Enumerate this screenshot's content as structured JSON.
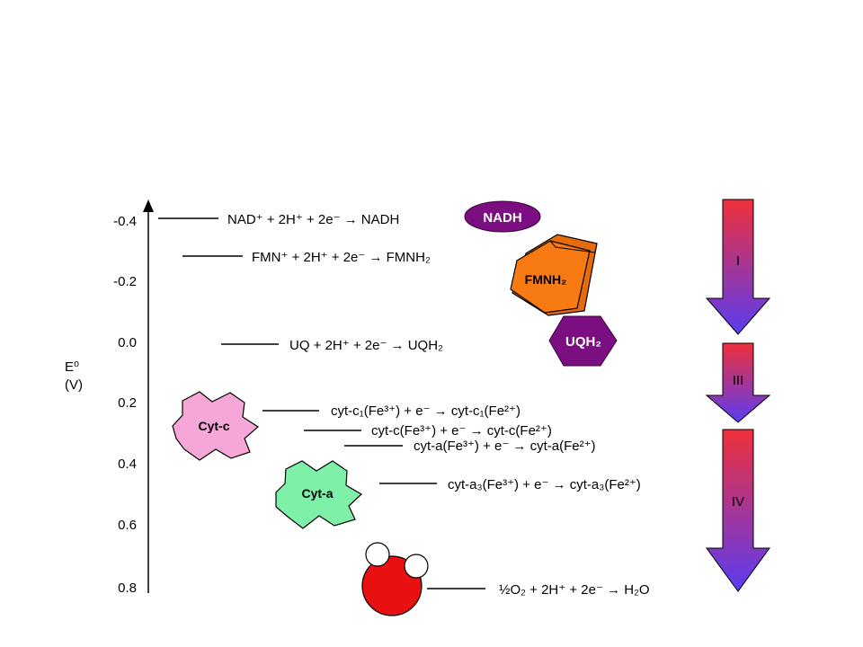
{
  "axis": {
    "label_top": "E⁰",
    "label_bottom": "(V)",
    "ticks": [
      "-0.4",
      "-0.2",
      "0.0",
      "0.2",
      "0.4",
      "0.6",
      "0.8"
    ]
  },
  "reactions": {
    "nad": "NAD⁺ + 2H⁺ + 2e⁻ → NADH",
    "fmn": "FMN⁺ + 2H⁺ + 2e⁻ → FMNH₂",
    "uq": "UQ + 2H⁺ + 2e⁻ → UQH₂",
    "cytc1": "cyt-c₁(Fe³⁺) + e⁻ → cyt-c₁(Fe²⁺)",
    "cytc": "cyt-c(Fe³⁺) + e⁻ → cyt-c(Fe²⁺)",
    "cyta": "cyt-a(Fe³⁺) + e⁻ → cyt-a(Fe²⁺)",
    "cyta3": "cyt-a₃(Fe³⁺) + e⁻ → cyt-a₃(Fe²⁺)",
    "water": "½O₂ + 2H⁺ + 2e⁻ → H₂O"
  },
  "molecules": {
    "nadh": "NADH",
    "fmnh2": "FMNH₂",
    "uqh2": "UQH₂",
    "cytc": "Cyt-c",
    "cyta": "Cyt-a"
  },
  "complexes": [
    "I",
    "III",
    "IV"
  ],
  "colors": {
    "nadh": "#7b0e80",
    "fmnh2": "#f77a12",
    "uqh2": "#7b0e80",
    "cytc": "#f7a6d8",
    "cyta": "#7ef0a8",
    "water_o": "#e81010",
    "arrow_top": "#f0303a",
    "arrow_bottom": "#5a3cf2"
  }
}
